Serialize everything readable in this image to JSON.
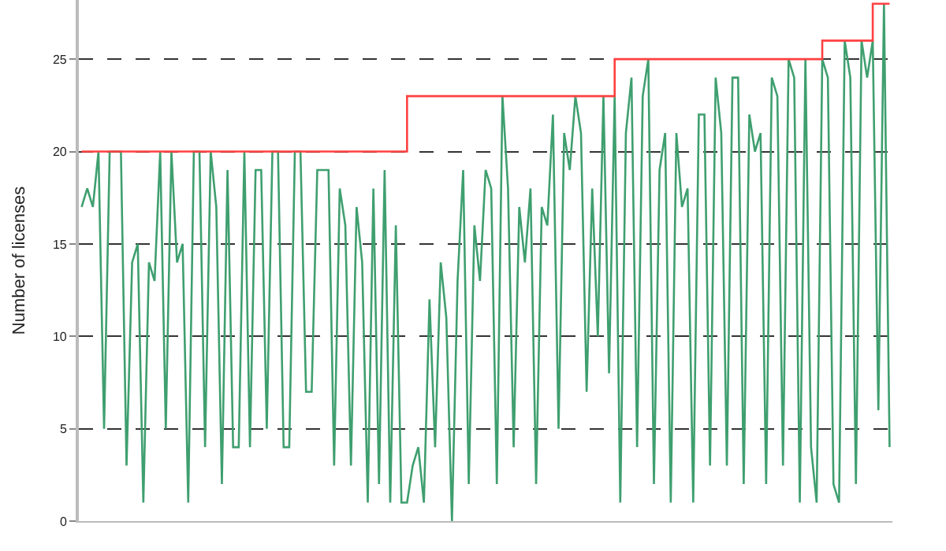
{
  "chart_data": {
    "type": "line",
    "ylabel": "Number of licenses",
    "categories": [
      null,
      null,
      null,
      null,
      null,
      null,
      null,
      null,
      null,
      null,
      null,
      null,
      null,
      null,
      null,
      null,
      null,
      null,
      null,
      null,
      null,
      null,
      null,
      null,
      null,
      null,
      null,
      null,
      null,
      null,
      null,
      null,
      null,
      null,
      null,
      null,
      null,
      null,
      null,
      null,
      null,
      null,
      null,
      null,
      null,
      null,
      null,
      null,
      null,
      null,
      null,
      null,
      null,
      null,
      null,
      null,
      null,
      null,
      null,
      null,
      null,
      null,
      null,
      null,
      null,
      null,
      null,
      null,
      null,
      null,
      null,
      null,
      null,
      null,
      null,
      null,
      null,
      null,
      null,
      null,
      null,
      null,
      null,
      null,
      null,
      null,
      null,
      null,
      null,
      null,
      null,
      null,
      null,
      null,
      null,
      null,
      null,
      null,
      null,
      null,
      null,
      null,
      null,
      null,
      null,
      null,
      null,
      null,
      null,
      null,
      null,
      null,
      null,
      null,
      null,
      null,
      null,
      null,
      null,
      null,
      null,
      null,
      null,
      null,
      null,
      null,
      null,
      null,
      null,
      null,
      null,
      null,
      null,
      null,
      null,
      null,
      null,
      null,
      null,
      null,
      null,
      null,
      null,
      null,
      null
    ],
    "series": [
      {
        "color": "#3f9f6f",
        "values": [
          17,
          18,
          17,
          20,
          5,
          20,
          20,
          20,
          3,
          14,
          15,
          1,
          14,
          13,
          20,
          5,
          20,
          14,
          15,
          1,
          20,
          20,
          4,
          20,
          17,
          2,
          19,
          4,
          4,
          20,
          4,
          19,
          19,
          5,
          20,
          20,
          4,
          4,
          20,
          20,
          7,
          7,
          19,
          19,
          19,
          3,
          18,
          16,
          3,
          17,
          14,
          1,
          18,
          2,
          19,
          1,
          16,
          1,
          1,
          3,
          4,
          1,
          12,
          4,
          14,
          11,
          0,
          13,
          19,
          2,
          16,
          13,
          19,
          18,
          2,
          23,
          18,
          4,
          17,
          14,
          18,
          2,
          17,
          16,
          22,
          5,
          21,
          19,
          23,
          21,
          7,
          18,
          10,
          23,
          8,
          23,
          1,
          21,
          24,
          4,
          23,
          25,
          2,
          19,
          21,
          1,
          21,
          17,
          18,
          1,
          22,
          22,
          3,
          24,
          21,
          3,
          24,
          24,
          2,
          22,
          20,
          21,
          2,
          24,
          23,
          3,
          25,
          24,
          1,
          25,
          4,
          1,
          25,
          24,
          2,
          1,
          26,
          24,
          2,
          26,
          24,
          26,
          6,
          28,
          4
        ]
      },
      {
        "color": "#ff4040",
        "type": "step",
        "values": [
          20,
          20,
          20,
          20,
          20,
          20,
          20,
          20,
          20,
          20,
          20,
          20,
          20,
          20,
          20,
          20,
          20,
          20,
          20,
          20,
          20,
          20,
          20,
          20,
          20,
          20,
          20,
          20,
          20,
          20,
          20,
          20,
          20,
          20,
          20,
          20,
          20,
          20,
          20,
          20,
          20,
          20,
          20,
          20,
          20,
          20,
          20,
          20,
          20,
          20,
          20,
          20,
          20,
          20,
          20,
          20,
          20,
          20,
          23,
          23,
          23,
          23,
          23,
          23,
          23,
          23,
          23,
          23,
          23,
          23,
          23,
          23,
          23,
          23,
          23,
          23,
          23,
          23,
          23,
          23,
          23,
          23,
          23,
          23,
          23,
          23,
          23,
          23,
          23,
          23,
          23,
          23,
          23,
          23,
          23,
          25,
          25,
          25,
          25,
          25,
          25,
          25,
          25,
          25,
          25,
          25,
          25,
          25,
          25,
          25,
          25,
          25,
          25,
          25,
          25,
          25,
          25,
          25,
          25,
          25,
          25,
          25,
          25,
          25,
          25,
          25,
          25,
          25,
          25,
          25,
          25,
          25,
          26,
          26,
          26,
          26,
          26,
          26,
          26,
          26,
          26,
          28,
          28,
          28,
          28
        ]
      }
    ],
    "ylim": [
      0,
      28.2
    ],
    "yticks": [
      0,
      5,
      10,
      15,
      20,
      25
    ],
    "grid": "y",
    "line_style": "solid",
    "marker": "none"
  }
}
